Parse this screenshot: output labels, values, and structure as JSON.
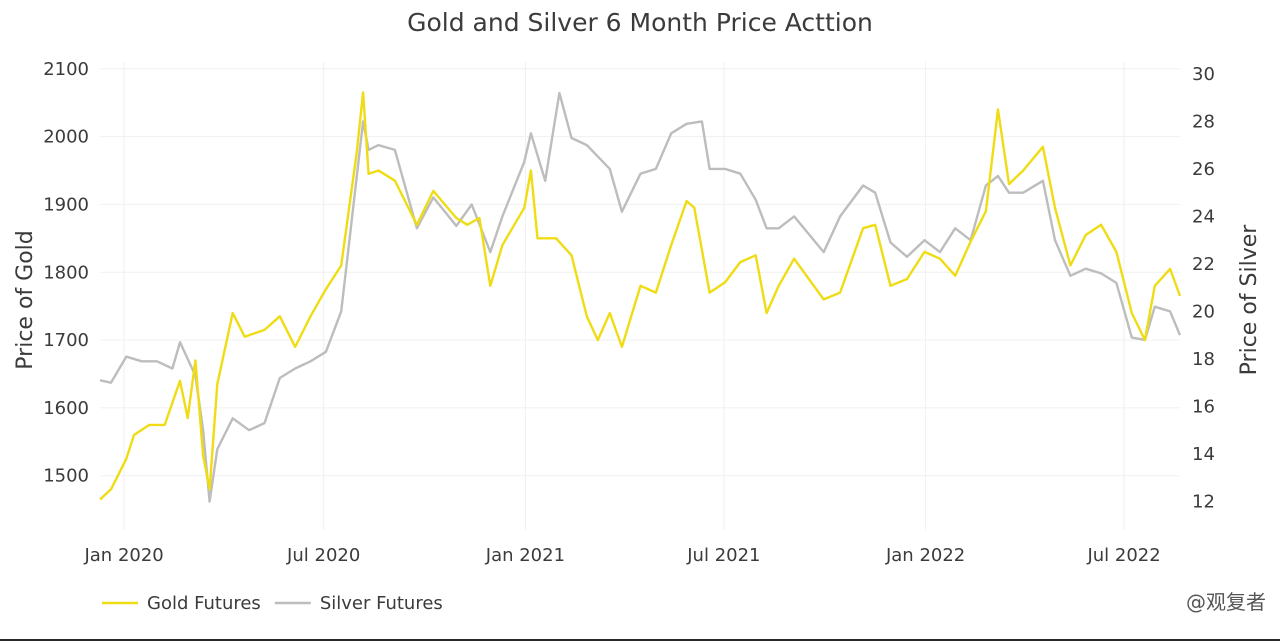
{
  "colors": {
    "gold": "#f0dc14",
    "silver": "#bdbdbd",
    "text": "#3b3b3b",
    "grid": "#f0f0f0"
  },
  "watermark": "@观复者",
  "chart_data": {
    "type": "line",
    "title": "Gold and Silver 6 Month Price Acttion",
    "x_ticks": [
      "Jan 2020",
      "Jul 2020",
      "Jan 2021",
      "Jul 2021",
      "Jan 2022",
      "Jul 2022"
    ],
    "x_tick_dates": [
      "2020-01-01",
      "2020-07-01",
      "2021-01-01",
      "2021-07-01",
      "2022-01-01",
      "2022-07-01"
    ],
    "x_range": [
      "2019-12-10",
      "2022-08-21"
    ],
    "y_left": {
      "label": "Price of Gold",
      "range": [
        1420,
        2110
      ],
      "ticks": [
        1500,
        1600,
        1700,
        1800,
        1900,
        2000,
        2100
      ]
    },
    "y_right": {
      "label": "Price of Silver",
      "range": [
        10.8,
        30.5
      ],
      "ticks": [
        12,
        14,
        16,
        18,
        20,
        22,
        24,
        26,
        28,
        30
      ]
    },
    "grid": true,
    "legend_position": "bottom-left",
    "series": [
      {
        "name": "Gold Futures",
        "axis": "left",
        "x": [
          "2019-12-10",
          "2019-12-20",
          "2020-01-03",
          "2020-01-10",
          "2020-01-24",
          "2020-02-07",
          "2020-02-21",
          "2020-02-28",
          "2020-03-06",
          "2020-03-13",
          "2020-03-19",
          "2020-03-26",
          "2020-04-09",
          "2020-04-20",
          "2020-05-08",
          "2020-05-22",
          "2020-06-05",
          "2020-06-19",
          "2020-07-03",
          "2020-07-17",
          "2020-07-31",
          "2020-08-06",
          "2020-08-11",
          "2020-08-20",
          "2020-09-04",
          "2020-09-24",
          "2020-10-09",
          "2020-10-30",
          "2020-11-09",
          "2020-11-20",
          "2020-11-30",
          "2020-12-11",
          "2020-12-31",
          "2021-01-06",
          "2021-01-12",
          "2021-01-29",
          "2021-02-12",
          "2021-02-26",
          "2021-03-08",
          "2021-03-19",
          "2021-03-30",
          "2021-04-16",
          "2021-04-30",
          "2021-05-14",
          "2021-05-28",
          "2021-06-04",
          "2021-06-18",
          "2021-07-02",
          "2021-07-16",
          "2021-07-30",
          "2021-08-09",
          "2021-08-20",
          "2021-09-03",
          "2021-09-30",
          "2021-10-15",
          "2021-11-05",
          "2021-11-16",
          "2021-11-30",
          "2021-12-15",
          "2021-12-31",
          "2022-01-14",
          "2022-01-28",
          "2022-02-11",
          "2022-02-25",
          "2022-03-08",
          "2022-03-18",
          "2022-03-31",
          "2022-04-18",
          "2022-04-29",
          "2022-05-13",
          "2022-05-27",
          "2022-06-10",
          "2022-06-24",
          "2022-07-08",
          "2022-07-20",
          "2022-07-29",
          "2022-08-12",
          "2022-08-21"
        ],
        "values": [
          1465,
          1480,
          1525,
          1560,
          1575,
          1575,
          1640,
          1585,
          1670,
          1530,
          1480,
          1635,
          1740,
          1705,
          1715,
          1735,
          1690,
          1735,
          1775,
          1810,
          1975,
          2065,
          1945,
          1950,
          1935,
          1870,
          1920,
          1880,
          1870,
          1880,
          1780,
          1840,
          1895,
          1950,
          1850,
          1850,
          1825,
          1735,
          1700,
          1740,
          1690,
          1780,
          1770,
          1840,
          1905,
          1895,
          1770,
          1785,
          1815,
          1825,
          1740,
          1780,
          1820,
          1760,
          1770,
          1865,
          1870,
          1780,
          1790,
          1830,
          1820,
          1795,
          1845,
          1890,
          2040,
          1930,
          1950,
          1985,
          1895,
          1810,
          1855,
          1870,
          1830,
          1740,
          1700,
          1780,
          1805,
          1765
        ]
      },
      {
        "name": "Silver Futures",
        "axis": "right",
        "x": [
          "2019-12-10",
          "2019-12-20",
          "2020-01-03",
          "2020-01-17",
          "2020-01-31",
          "2020-02-14",
          "2020-02-21",
          "2020-03-06",
          "2020-03-13",
          "2020-03-19",
          "2020-03-26",
          "2020-04-09",
          "2020-04-24",
          "2020-05-08",
          "2020-05-22",
          "2020-06-05",
          "2020-06-19",
          "2020-07-03",
          "2020-07-17",
          "2020-07-24",
          "2020-08-06",
          "2020-08-11",
          "2020-08-20",
          "2020-09-04",
          "2020-09-24",
          "2020-10-09",
          "2020-10-30",
          "2020-11-13",
          "2020-11-30",
          "2020-12-11",
          "2020-12-31",
          "2021-01-06",
          "2021-01-19",
          "2021-02-01",
          "2021-02-12",
          "2021-02-26",
          "2021-03-19",
          "2021-03-30",
          "2021-04-16",
          "2021-04-30",
          "2021-05-14",
          "2021-05-28",
          "2021-06-11",
          "2021-06-18",
          "2021-07-02",
          "2021-07-16",
          "2021-07-30",
          "2021-08-09",
          "2021-08-20",
          "2021-09-03",
          "2021-09-30",
          "2021-10-15",
          "2021-11-05",
          "2021-11-16",
          "2021-11-30",
          "2021-12-15",
          "2021-12-31",
          "2022-01-14",
          "2022-01-28",
          "2022-02-11",
          "2022-02-25",
          "2022-03-08",
          "2022-03-18",
          "2022-03-31",
          "2022-04-18",
          "2022-04-29",
          "2022-05-13",
          "2022-05-27",
          "2022-06-10",
          "2022-06-24",
          "2022-07-08",
          "2022-07-20",
          "2022-07-29",
          "2022-08-12",
          "2022-08-21"
        ],
        "values": [
          17.1,
          17.0,
          18.1,
          17.9,
          17.9,
          17.6,
          18.7,
          17.3,
          15.0,
          12.0,
          14.2,
          15.5,
          15.0,
          15.3,
          17.2,
          17.6,
          17.9,
          18.3,
          20.0,
          22.8,
          28.0,
          26.8,
          27.0,
          26.8,
          23.5,
          24.8,
          23.6,
          24.5,
          22.5,
          24.0,
          26.3,
          27.5,
          25.5,
          29.2,
          27.3,
          27.0,
          26.0,
          24.2,
          25.8,
          26.0,
          27.5,
          27.9,
          28.0,
          26.0,
          26.0,
          25.8,
          24.7,
          23.5,
          23.5,
          24.0,
          22.5,
          24.0,
          25.3,
          25.0,
          22.9,
          22.3,
          23.0,
          22.5,
          23.5,
          23.0,
          25.3,
          25.7,
          25.0,
          25.0,
          25.5,
          23.0,
          21.5,
          21.8,
          21.6,
          21.2,
          18.9,
          18.8,
          20.2,
          20.0,
          19.0
        ]
      }
    ]
  }
}
